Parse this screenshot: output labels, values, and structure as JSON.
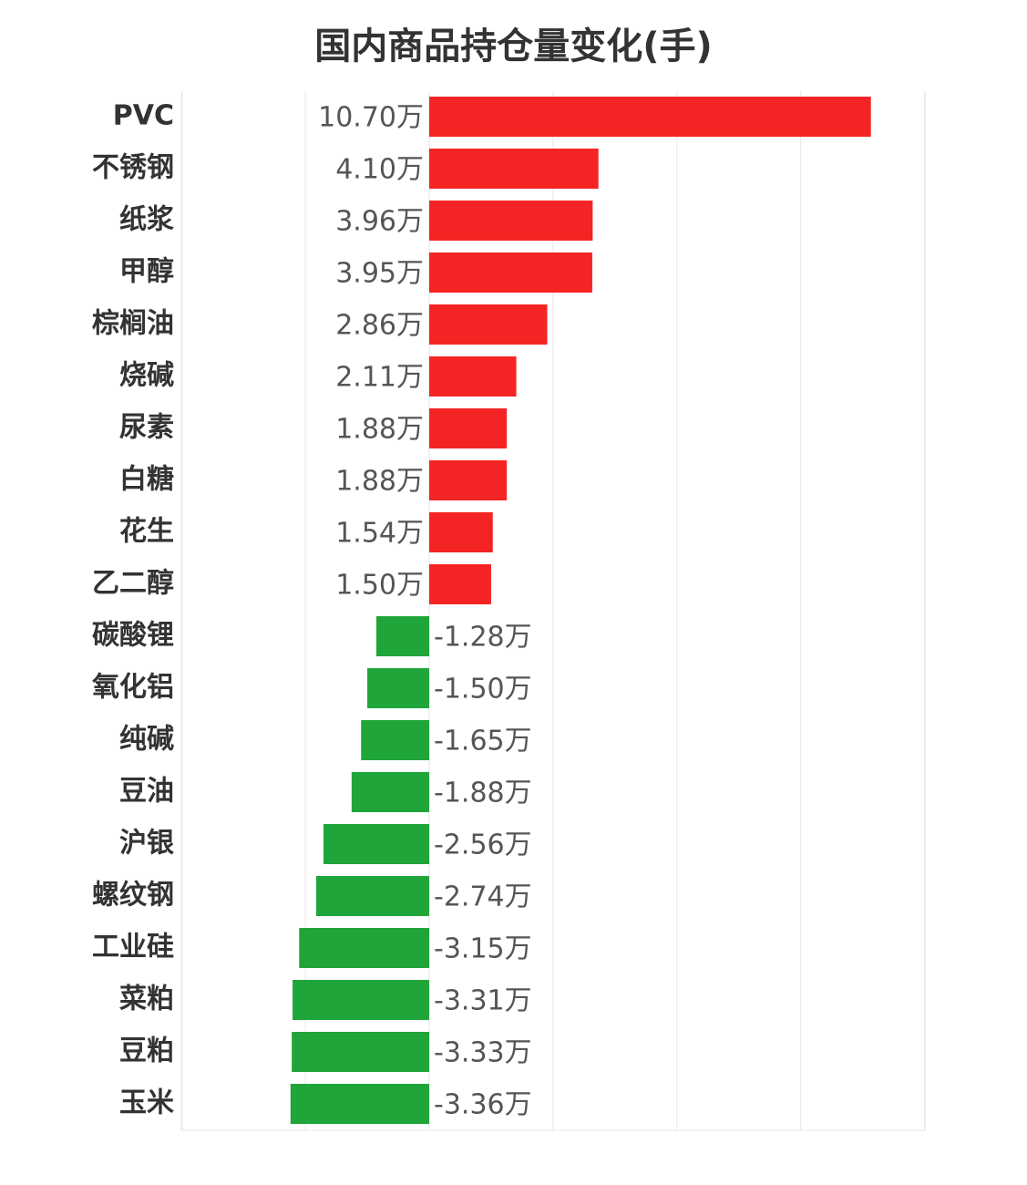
{
  "chart_data": {
    "type": "bar",
    "orientation": "horizontal",
    "title": "国内商品持仓量变化(手)",
    "unit": "万",
    "categories": [
      "PVC",
      "不锈钢",
      "纸浆",
      "甲醇",
      "棕榈油",
      "烧碱",
      "尿素",
      "白糖",
      "花生",
      "乙二醇",
      "碳酸锂",
      "氧化铝",
      "纯碱",
      "豆油",
      "沪银",
      "螺纹钢",
      "工业硅",
      "菜粕",
      "豆粕",
      "玉米"
    ],
    "values": [
      10.7,
      4.1,
      3.96,
      3.95,
      2.86,
      2.11,
      1.88,
      1.88,
      1.54,
      1.5,
      -1.28,
      -1.5,
      -1.65,
      -1.88,
      -2.56,
      -2.74,
      -3.15,
      -3.31,
      -3.33,
      -3.36
    ],
    "value_labels": [
      "10.70万",
      "4.10万",
      "3.96万",
      "3.95万",
      "2.86万",
      "2.11万",
      "1.88万",
      "1.88万",
      "1.54万",
      "1.50万",
      "-1.28万",
      "-1.50万",
      "-1.65万",
      "-1.88万",
      "-2.56万",
      "-2.74万",
      "-3.15万",
      "-3.31万",
      "-3.33万",
      "-3.36万"
    ],
    "xlim": [
      -6,
      12
    ],
    "grid": true,
    "colors": {
      "positive": "#f52424",
      "negative": "#20a53a",
      "grid": "#e6e6e6",
      "label": "#333333",
      "value_label": "#555555"
    }
  }
}
